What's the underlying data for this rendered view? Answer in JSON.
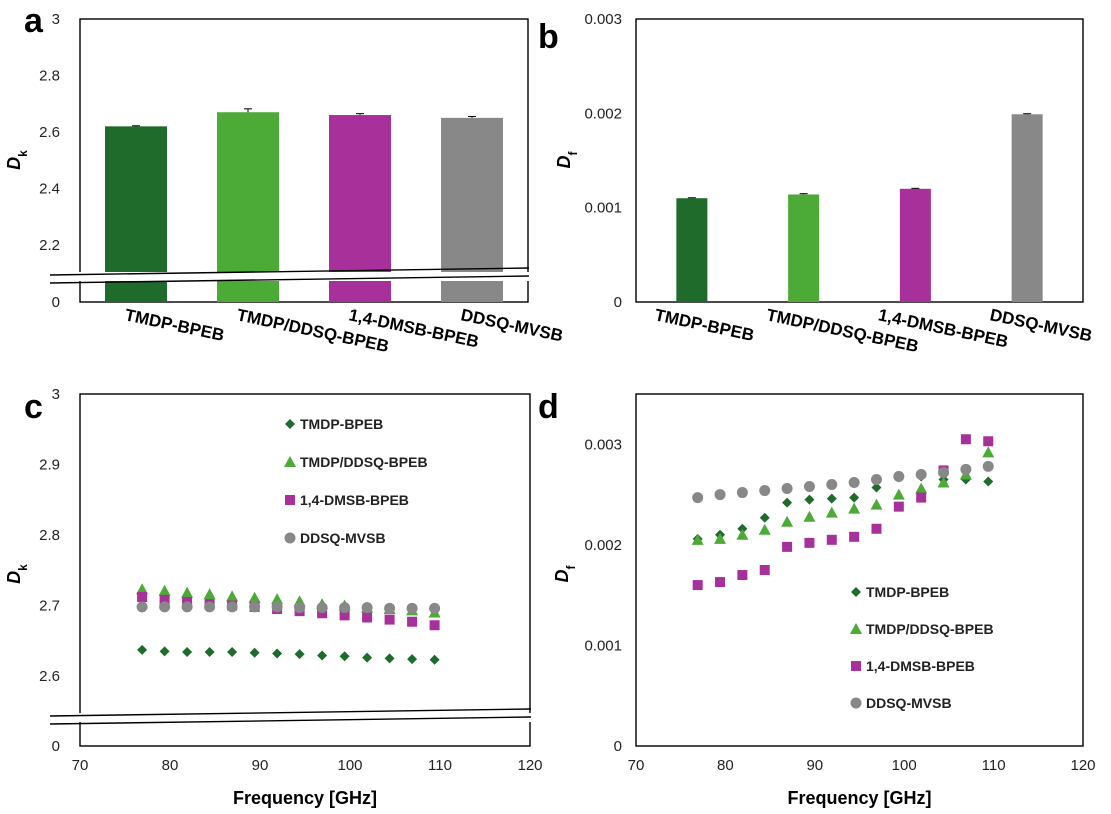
{
  "colors": {
    "TMDP-BPEB": "#1e6b2c",
    "TMDP/DDSQ-BPEB": "#4caa36",
    "1,4-DMSB-BPEB": "#a8309a",
    "DDSQ-MVSB": "#888888"
  },
  "chart_data": [
    {
      "panel": "a",
      "type": "bar",
      "categories": [
        "TMDP-BPEB",
        "TMDP/DDSQ-BPEB",
        "1,4-DMSB-BPEB",
        "DDSQ-MVSB"
      ],
      "values": [
        2.62,
        2.67,
        2.66,
        2.65
      ],
      "errors": [
        0.002,
        0.012,
        0.005,
        0.005
      ],
      "ylabel_main": "D",
      "ylabel_sub": "k",
      "yticks": [
        "0",
        "2.2",
        "2.4",
        "2.6",
        "2.8",
        "3"
      ],
      "axis_break": true,
      "ylim_upper": [
        2.1,
        3.0
      ],
      "grid": false
    },
    {
      "panel": "b",
      "type": "bar",
      "categories": [
        "TMDP-BPEB",
        "TMDP/DDSQ-BPEB",
        "1,4-DMSB-BPEB",
        "DDSQ-MVSB"
      ],
      "values": [
        0.0011,
        0.00114,
        0.0012,
        0.00199
      ],
      "errors": [
        5e-06,
        8e-06,
        5e-06,
        6e-06
      ],
      "ylabel_main": "D",
      "ylabel_sub": "f",
      "yticks": [
        "0",
        "0.001",
        "0.002",
        "0.003"
      ],
      "ylim": [
        0,
        0.003
      ],
      "grid": false
    },
    {
      "panel": "c",
      "type": "scatter",
      "xlabel": "Frequency [GHz]",
      "ylabel_main": "D",
      "ylabel_sub": "k",
      "xticks": [
        "70",
        "80",
        "90",
        "100",
        "110",
        "120"
      ],
      "xlim": [
        70,
        120
      ],
      "yticks": [
        "0",
        "2.6",
        "2.7",
        "2.8",
        "2.9",
        "3"
      ],
      "axis_break": true,
      "ylim_upper": [
        2.56,
        3.0
      ],
      "legend_position": "top-center",
      "x": [
        76.9,
        79.4,
        81.9,
        84.4,
        86.9,
        89.4,
        91.9,
        94.4,
        96.9,
        99.4,
        101.9,
        104.4,
        106.9,
        109.4
      ],
      "series": [
        {
          "name": "TMDP-BPEB",
          "marker": "diamond",
          "values": [
            2.637,
            2.635,
            2.634,
            2.634,
            2.634,
            2.633,
            2.632,
            2.631,
            2.629,
            2.628,
            2.626,
            2.625,
            2.624,
            2.623
          ]
        },
        {
          "name": "TMDP/DDSQ-BPEB",
          "marker": "triangle",
          "values": [
            2.723,
            2.721,
            2.718,
            2.716,
            2.713,
            2.711,
            2.709,
            2.706,
            2.702,
            2.7,
            2.697,
            2.695,
            2.693,
            2.69
          ]
        },
        {
          "name": "1,4-DMSB-BPEB",
          "marker": "square",
          "values": [
            2.712,
            2.708,
            2.705,
            2.702,
            2.7,
            2.698,
            2.695,
            2.692,
            2.689,
            2.686,
            2.683,
            2.68,
            2.677,
            2.672
          ]
        },
        {
          "name": "DDSQ-MVSB",
          "marker": "circle",
          "values": [
            2.698,
            2.698,
            2.698,
            2.698,
            2.698,
            2.698,
            2.698,
            2.697,
            2.697,
            2.697,
            2.697,
            2.696,
            2.696,
            2.696
          ]
        }
      ]
    },
    {
      "panel": "d",
      "type": "scatter",
      "xlabel": "Frequency [GHz]",
      "ylabel_main": "D",
      "ylabel_sub": "f",
      "xticks": [
        "70",
        "80",
        "90",
        "100",
        "110",
        "120"
      ],
      "xlim": [
        70,
        120
      ],
      "yticks": [
        "0",
        "0.001",
        "0.002",
        "0.003"
      ],
      "ylim": [
        0,
        0.0035
      ],
      "legend_position": "bottom-center",
      "x": [
        76.9,
        79.4,
        81.9,
        84.4,
        86.9,
        89.4,
        91.9,
        94.4,
        96.9,
        99.4,
        101.9,
        104.4,
        106.9,
        109.4
      ],
      "series": [
        {
          "name": "TMDP-BPEB",
          "marker": "diamond",
          "values": [
            0.00206,
            0.0021,
            0.00216,
            0.00227,
            0.00242,
            0.00245,
            0.00246,
            0.00247,
            0.00257,
            0.00267,
            0.00268,
            0.00265,
            0.00265,
            0.00263
          ]
        },
        {
          "name": "TMDP/DDSQ-BPEB",
          "marker": "triangle",
          "values": [
            0.00205,
            0.00206,
            0.0021,
            0.00215,
            0.00223,
            0.00228,
            0.00232,
            0.00236,
            0.0024,
            0.0025,
            0.00256,
            0.00262,
            0.0027,
            0.00292
          ]
        },
        {
          "name": "1,4-DMSB-BPEB",
          "marker": "square",
          "values": [
            0.0016,
            0.00163,
            0.0017,
            0.00175,
            0.00198,
            0.00202,
            0.00205,
            0.00208,
            0.00216,
            0.00238,
            0.00247,
            0.00274,
            0.00305,
            0.00303
          ]
        },
        {
          "name": "DDSQ-MVSB",
          "marker": "circle",
          "values": [
            0.00247,
            0.0025,
            0.00252,
            0.00254,
            0.00256,
            0.00258,
            0.0026,
            0.00262,
            0.00265,
            0.00268,
            0.0027,
            0.00272,
            0.00275,
            0.00278
          ]
        }
      ]
    }
  ]
}
